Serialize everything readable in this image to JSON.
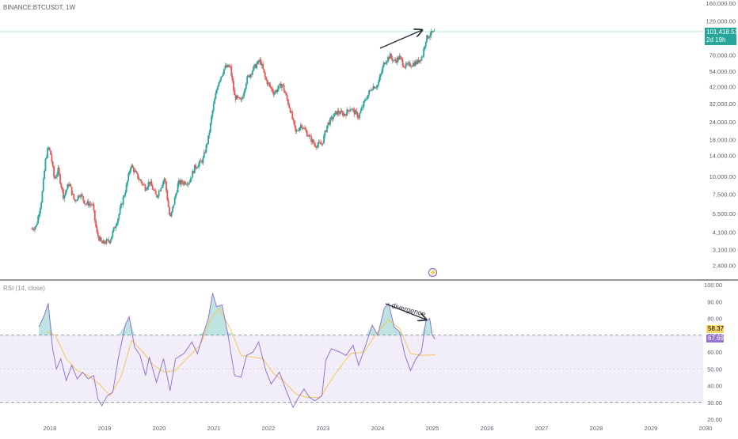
{
  "symbol_label": "BINANCE:BTCUSDT, 1W",
  "rsi_label": "RSI (14, close)",
  "colors": {
    "up": "#26a69a",
    "down": "#ef5350",
    "rsi_line": "#9575cd",
    "rsi_ma": "#f6c65b",
    "rsi_band": "#7e57c2",
    "price_line": "#26a69a",
    "arrow": "#2a2e39",
    "value_badge_rsi": "#f9d56b",
    "value_badge_rsi2": "#9575cd"
  },
  "price_badge": {
    "value": "101,418.51",
    "countdown": "2d 19h"
  },
  "rsi_badges": {
    "ma_value": "58.37",
    "rsi_value": "67.69"
  },
  "annotations": {
    "divergence": "divergence"
  },
  "icons": {
    "lightning": "lightning-icon"
  },
  "chart_data": [
    {
      "type": "candlestick",
      "scale": "log",
      "ylim": [
        2000,
        160000
      ],
      "y_ticks": [
        "160,000.00",
        "120,000.00",
        "70,000.00",
        "54,000.00",
        "42,000.00",
        "32,000.00",
        "24,000.00",
        "18,000.00",
        "14,000.00",
        "10,000.00",
        "7,500.00",
        "5,500.00",
        "4,100.00",
        "3,100.00",
        "2,400.00"
      ],
      "y_tick_values": [
        160000,
        120000,
        70000,
        54000,
        42000,
        32000,
        24000,
        18000,
        14000,
        10000,
        7500,
        5500,
        4100,
        3100,
        2400
      ],
      "x_ticks": [
        "2018",
        "2019",
        "2020",
        "2021",
        "2022",
        "2023",
        "2024",
        "2025",
        "2026",
        "2027",
        "2028",
        "2029",
        "2030"
      ],
      "x_tick_years": [
        2018,
        2019,
        2020,
        2021,
        2022,
        2023,
        2024,
        2025,
        2026,
        2027,
        2028,
        2029,
        2030
      ],
      "last_price": 101418.51,
      "close_path": [
        {
          "t": 2017.65,
          "v": 4300
        },
        {
          "t": 2017.75,
          "v": 4500
        },
        {
          "t": 2017.85,
          "v": 7000
        },
        {
          "t": 2017.92,
          "v": 13000
        },
        {
          "t": 2017.97,
          "v": 16000
        },
        {
          "t": 2018.02,
          "v": 14000
        },
        {
          "t": 2018.08,
          "v": 9500
        },
        {
          "t": 2018.15,
          "v": 11000
        },
        {
          "t": 2018.25,
          "v": 7200
        },
        {
          "t": 2018.35,
          "v": 9000
        },
        {
          "t": 2018.45,
          "v": 6700
        },
        {
          "t": 2018.55,
          "v": 7600
        },
        {
          "t": 2018.65,
          "v": 6500
        },
        {
          "t": 2018.78,
          "v": 6400
        },
        {
          "t": 2018.86,
          "v": 4000
        },
        {
          "t": 2018.95,
          "v": 3400
        },
        {
          "t": 2019.1,
          "v": 3600
        },
        {
          "t": 2019.25,
          "v": 5200
        },
        {
          "t": 2019.4,
          "v": 8500
        },
        {
          "t": 2019.48,
          "v": 12000
        },
        {
          "t": 2019.6,
          "v": 10000
        },
        {
          "t": 2019.75,
          "v": 8300
        },
        {
          "t": 2019.82,
          "v": 9200
        },
        {
          "t": 2019.95,
          "v": 7200
        },
        {
          "t": 2020.1,
          "v": 9800
        },
        {
          "t": 2020.2,
          "v": 5000
        },
        {
          "t": 2020.35,
          "v": 9000
        },
        {
          "t": 2020.55,
          "v": 9200
        },
        {
          "t": 2020.65,
          "v": 11500
        },
        {
          "t": 2020.8,
          "v": 13000
        },
        {
          "t": 2020.9,
          "v": 18500
        },
        {
          "t": 2020.98,
          "v": 29000
        },
        {
          "t": 2021.08,
          "v": 45000
        },
        {
          "t": 2021.2,
          "v": 57000
        },
        {
          "t": 2021.3,
          "v": 58000
        },
        {
          "t": 2021.38,
          "v": 36000
        },
        {
          "t": 2021.5,
          "v": 33000
        },
        {
          "t": 2021.6,
          "v": 47000
        },
        {
          "t": 2021.75,
          "v": 58000
        },
        {
          "t": 2021.85,
          "v": 64000
        },
        {
          "t": 2021.95,
          "v": 47000
        },
        {
          "t": 2022.1,
          "v": 38000
        },
        {
          "t": 2022.25,
          "v": 44000
        },
        {
          "t": 2022.4,
          "v": 29000
        },
        {
          "t": 2022.5,
          "v": 20000
        },
        {
          "t": 2022.6,
          "v": 23000
        },
        {
          "t": 2022.72,
          "v": 19500
        },
        {
          "t": 2022.85,
          "v": 16500
        },
        {
          "t": 2022.98,
          "v": 16800
        },
        {
          "t": 2023.08,
          "v": 23000
        },
        {
          "t": 2023.25,
          "v": 28000
        },
        {
          "t": 2023.4,
          "v": 27000
        },
        {
          "t": 2023.5,
          "v": 30000
        },
        {
          "t": 2023.65,
          "v": 26000
        },
        {
          "t": 2023.78,
          "v": 34500
        },
        {
          "t": 2023.9,
          "v": 42000
        },
        {
          "t": 2024.0,
          "v": 43000
        },
        {
          "t": 2024.12,
          "v": 62000
        },
        {
          "t": 2024.22,
          "v": 69000
        },
        {
          "t": 2024.3,
          "v": 63000
        },
        {
          "t": 2024.4,
          "v": 67000
        },
        {
          "t": 2024.5,
          "v": 58000
        },
        {
          "t": 2024.6,
          "v": 60000
        },
        {
          "t": 2024.72,
          "v": 62000
        },
        {
          "t": 2024.82,
          "v": 69000
        },
        {
          "t": 2024.88,
          "v": 90000
        },
        {
          "t": 2024.95,
          "v": 97000
        },
        {
          "t": 2025.0,
          "v": 99000
        },
        {
          "t": 2025.05,
          "v": 101418.51
        }
      ]
    },
    {
      "type": "line",
      "ylim": [
        20,
        100
      ],
      "y_ticks": [
        "100.00",
        "90.00",
        "80.00",
        "70.00",
        "60.00",
        "50.00",
        "40.00",
        "30.00",
        "20.00"
      ],
      "y_tick_values": [
        100,
        90,
        80,
        70,
        60,
        50,
        40,
        30,
        20
      ],
      "band": [
        30,
        70
      ],
      "mid_line": 50,
      "series": [
        {
          "role": "rsi",
          "points": [
            {
              "t": 2017.8,
              "v": 75
            },
            {
              "t": 2017.9,
              "v": 82
            },
            {
              "t": 2017.97,
              "v": 89
            },
            {
              "t": 2018.05,
              "v": 62
            },
            {
              "t": 2018.12,
              "v": 50
            },
            {
              "t": 2018.2,
              "v": 56
            },
            {
              "t": 2018.3,
              "v": 43
            },
            {
              "t": 2018.4,
              "v": 52
            },
            {
              "t": 2018.5,
              "v": 44
            },
            {
              "t": 2018.6,
              "v": 48
            },
            {
              "t": 2018.7,
              "v": 44
            },
            {
              "t": 2018.8,
              "v": 46
            },
            {
              "t": 2018.88,
              "v": 32
            },
            {
              "t": 2018.95,
              "v": 28
            },
            {
              "t": 2019.05,
              "v": 34
            },
            {
              "t": 2019.15,
              "v": 36
            },
            {
              "t": 2019.25,
              "v": 56
            },
            {
              "t": 2019.38,
              "v": 76
            },
            {
              "t": 2019.45,
              "v": 81
            },
            {
              "t": 2019.55,
              "v": 63
            },
            {
              "t": 2019.65,
              "v": 58
            },
            {
              "t": 2019.75,
              "v": 46
            },
            {
              "t": 2019.82,
              "v": 57
            },
            {
              "t": 2019.95,
              "v": 42
            },
            {
              "t": 2020.08,
              "v": 56
            },
            {
              "t": 2020.2,
              "v": 37
            },
            {
              "t": 2020.3,
              "v": 56
            },
            {
              "t": 2020.45,
              "v": 59
            },
            {
              "t": 2020.6,
              "v": 66
            },
            {
              "t": 2020.7,
              "v": 59
            },
            {
              "t": 2020.82,
              "v": 72
            },
            {
              "t": 2020.9,
              "v": 80
            },
            {
              "t": 2020.98,
              "v": 95
            },
            {
              "t": 2021.05,
              "v": 87
            },
            {
              "t": 2021.15,
              "v": 88
            },
            {
              "t": 2021.25,
              "v": 72
            },
            {
              "t": 2021.38,
              "v": 46
            },
            {
              "t": 2021.5,
              "v": 45
            },
            {
              "t": 2021.6,
              "v": 58
            },
            {
              "t": 2021.72,
              "v": 60
            },
            {
              "t": 2021.82,
              "v": 66
            },
            {
              "t": 2021.95,
              "v": 49
            },
            {
              "t": 2022.05,
              "v": 41
            },
            {
              "t": 2022.2,
              "v": 48
            },
            {
              "t": 2022.35,
              "v": 35
            },
            {
              "t": 2022.45,
              "v": 27
            },
            {
              "t": 2022.55,
              "v": 33
            },
            {
              "t": 2022.65,
              "v": 38
            },
            {
              "t": 2022.75,
              "v": 33
            },
            {
              "t": 2022.85,
              "v": 31
            },
            {
              "t": 2022.98,
              "v": 34
            },
            {
              "t": 2023.05,
              "v": 55
            },
            {
              "t": 2023.15,
              "v": 62
            },
            {
              "t": 2023.3,
              "v": 60
            },
            {
              "t": 2023.42,
              "v": 58
            },
            {
              "t": 2023.55,
              "v": 64
            },
            {
              "t": 2023.65,
              "v": 52
            },
            {
              "t": 2023.78,
              "v": 64
            },
            {
              "t": 2023.9,
              "v": 76
            },
            {
              "t": 2024.0,
              "v": 70
            },
            {
              "t": 2024.12,
              "v": 86
            },
            {
              "t": 2024.2,
              "v": 89
            },
            {
              "t": 2024.3,
              "v": 75
            },
            {
              "t": 2024.4,
              "v": 72
            },
            {
              "t": 2024.5,
              "v": 58
            },
            {
              "t": 2024.6,
              "v": 49
            },
            {
              "t": 2024.7,
              "v": 56
            },
            {
              "t": 2024.8,
              "v": 60
            },
            {
              "t": 2024.88,
              "v": 78
            },
            {
              "t": 2024.95,
              "v": 80
            },
            {
              "t": 2025.0,
              "v": 70
            },
            {
              "t": 2025.05,
              "v": 67.69
            }
          ]
        },
        {
          "role": "rsi-ma",
          "points": [
            {
              "t": 2017.95,
              "v": 72
            },
            {
              "t": 2018.1,
              "v": 70
            },
            {
              "t": 2018.3,
              "v": 56
            },
            {
              "t": 2018.5,
              "v": 49
            },
            {
              "t": 2018.7,
              "v": 46
            },
            {
              "t": 2018.9,
              "v": 41
            },
            {
              "t": 2019.1,
              "v": 34
            },
            {
              "t": 2019.3,
              "v": 45
            },
            {
              "t": 2019.5,
              "v": 67
            },
            {
              "t": 2019.7,
              "v": 60
            },
            {
              "t": 2019.9,
              "v": 52
            },
            {
              "t": 2020.1,
              "v": 48
            },
            {
              "t": 2020.3,
              "v": 49
            },
            {
              "t": 2020.5,
              "v": 56
            },
            {
              "t": 2020.75,
              "v": 64
            },
            {
              "t": 2020.95,
              "v": 80
            },
            {
              "t": 2021.1,
              "v": 86
            },
            {
              "t": 2021.3,
              "v": 74
            },
            {
              "t": 2021.5,
              "v": 58
            },
            {
              "t": 2021.7,
              "v": 57
            },
            {
              "t": 2021.9,
              "v": 56
            },
            {
              "t": 2022.1,
              "v": 47
            },
            {
              "t": 2022.3,
              "v": 42
            },
            {
              "t": 2022.5,
              "v": 35
            },
            {
              "t": 2022.7,
              "v": 33
            },
            {
              "t": 2022.95,
              "v": 33
            },
            {
              "t": 2023.2,
              "v": 46
            },
            {
              "t": 2023.5,
              "v": 59
            },
            {
              "t": 2023.75,
              "v": 60
            },
            {
              "t": 2024.0,
              "v": 72
            },
            {
              "t": 2024.2,
              "v": 79
            },
            {
              "t": 2024.4,
              "v": 74
            },
            {
              "t": 2024.6,
              "v": 59
            },
            {
              "t": 2024.8,
              "v": 58
            },
            {
              "t": 2025.05,
              "v": 58.37
            }
          ]
        }
      ]
    }
  ]
}
